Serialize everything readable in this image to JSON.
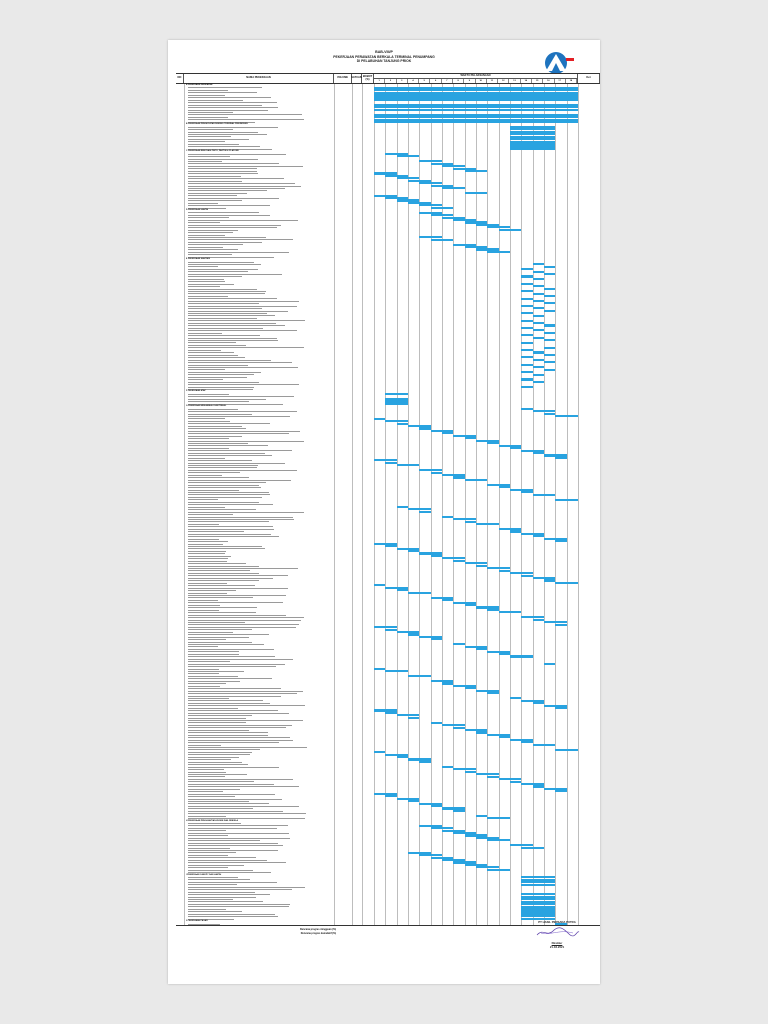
{
  "header": {
    "title": "BAB-VIII/P",
    "subtitle_line1": "PEKERJAAN PERAWATAN BERKALA TERMINAL PENUMPANG",
    "subtitle_line2": "DI PELABUHAN TANJUNG PRIOK"
  },
  "table": {
    "col_no": "NO",
    "col_desc": "NAMA PEKERJAAN",
    "col_volume": "VOLUME",
    "col_sat": "SATUAN",
    "col_bobot": "BOBOT (%)",
    "col_waktu": "WAKTU PELAKSANAAN",
    "col_ket": "Ket"
  },
  "weeks": [
    "1",
    "2",
    "3",
    "4",
    "5",
    "6",
    "7",
    "8",
    "9",
    "10",
    "11",
    "12",
    "13",
    "14",
    "15",
    "16",
    "17",
    "18"
  ],
  "sections": [
    {
      "no": "A",
      "title": "PEKERJAAN PERSIAPAN"
    },
    {
      "no": "B",
      "title": "PEKERJAAN PENGECATAN DINDING TERMINAL PENUMPANG"
    },
    {
      "no": "C",
      "title": "PEKERJAAN RENOVASI PINTU, PARTISI & PLAFOND"
    },
    {
      "no": "D",
      "title": "PEKERJAAN LANTAI"
    },
    {
      "no": "E",
      "title": "PEKERJAAN SANITASI"
    },
    {
      "no": "F",
      "title": "PEKERJAAN ATAP"
    },
    {
      "no": "G",
      "title": "PEKERJAAN MEKANIKAL ELEKTRIKAL"
    },
    {
      "no": "H",
      "title": "PEKERJAAN PENGGANTIAN KUSEN DAN JENDELA"
    },
    {
      "no": "I",
      "title": "PEKERJAAN CANOPY DAN LANTAI"
    },
    {
      "no": "J",
      "title": "PEKERJAAN PAGAR"
    },
    {
      "no": "K",
      "title": "PEKERJAAN LAIN-LAIN"
    },
    {
      "no": "L",
      "title": "PEKERJAAN PEMBERSIHAN AKHIR"
    }
  ],
  "footer": {
    "label_weekly": "Rencana progres mingguan (%)",
    "label_cumulative": "Rencana progres kumulatif (%)"
  },
  "signature": {
    "company": "PT HASIL PERSADA PUTRA",
    "name": "Direktur",
    "date": "21-03-2021"
  }
}
